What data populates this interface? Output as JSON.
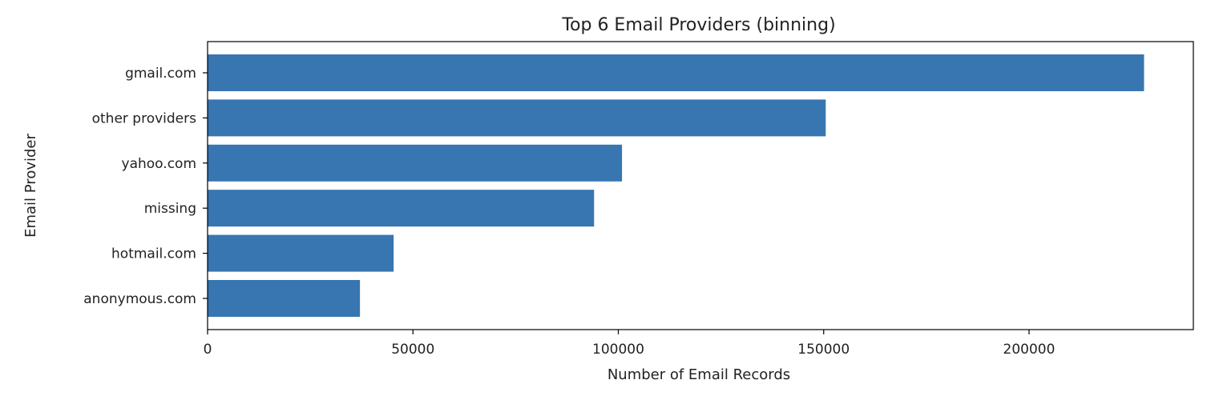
{
  "chart_data": {
    "type": "bar",
    "orientation": "horizontal",
    "title": "Top 6 Email Providers (binning)",
    "xlabel": "Number of Email Records",
    "ylabel": "Email Provider",
    "categories": [
      "gmail.com",
      "other providers",
      "yahoo.com",
      "missing",
      "hotmail.com",
      "anonymous.com"
    ],
    "values": [
      228000,
      150500,
      100900,
      94100,
      45300,
      37100
    ],
    "xlim": [
      0,
      240000
    ],
    "xticks": [
      0,
      50000,
      100000,
      150000,
      200000
    ],
    "xtick_labels": [
      "0",
      "50000",
      "100000",
      "150000",
      "200000"
    ],
    "bar_color": "#3776b0",
    "grid": false,
    "legend": "none"
  }
}
